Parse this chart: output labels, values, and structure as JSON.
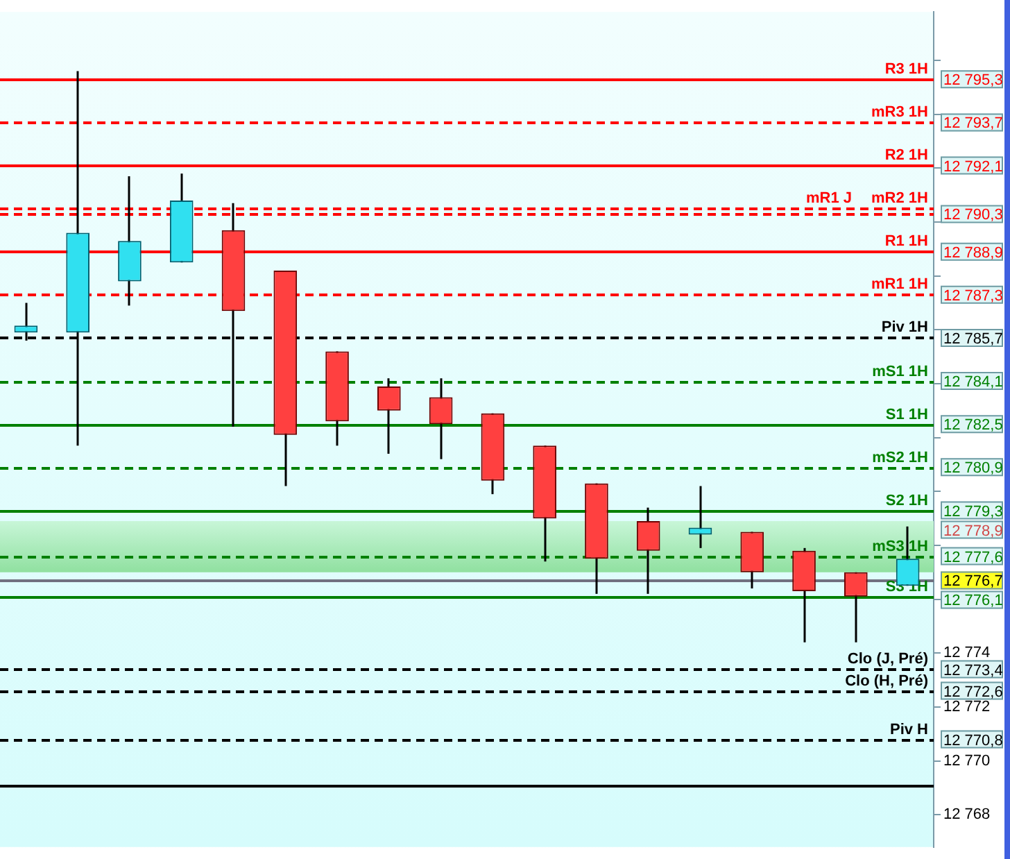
{
  "chart_data": {
    "type": "candlestick",
    "categories": [
      null,
      null,
      null,
      null,
      null,
      null,
      null,
      null,
      null,
      null,
      null,
      null,
      null,
      null,
      null,
      null,
      null,
      null
    ],
    "ohlc": [
      [
        12785.9,
        12787.0,
        12785.6,
        12786.0
      ],
      [
        12785.9,
        12795.6,
        12781.7,
        12789.6
      ],
      [
        12787.8,
        12791.7,
        12786.9,
        12789.3
      ],
      [
        12788.5,
        12791.8,
        12788.5,
        12790.8
      ],
      [
        12789.7,
        12790.7,
        12782.4,
        12786.7
      ],
      [
        12788.2,
        12788.2,
        12780.2,
        12782.1
      ],
      [
        12785.2,
        12785.2,
        12781.7,
        12782.6
      ],
      [
        12783.9,
        12784.2,
        12781.4,
        12783.0
      ],
      [
        12783.5,
        12784.2,
        12781.2,
        12782.5
      ],
      [
        12782.9,
        12782.9,
        12779.9,
        12780.4
      ],
      [
        12781.7,
        12781.7,
        12777.4,
        12779.0
      ],
      [
        12780.3,
        12780.3,
        12776.2,
        12777.5
      ],
      [
        12778.9,
        12779.4,
        12776.2,
        12777.8
      ],
      [
        12778.4,
        12780.2,
        12777.9,
        12778.6
      ],
      [
        12778.5,
        12778.5,
        12776.4,
        12777.0
      ],
      [
        12777.8,
        12777.9,
        12774.4,
        12776.3
      ],
      [
        12777.0,
        12777.0,
        12774.4,
        12776.1
      ],
      [
        12776.5,
        12778.7,
        12776.5,
        12777.5
      ]
    ],
    "annotations": [
      "12 795,3",
      "12 793,7",
      "12 792,1",
      "12 790,3",
      "12 788,9",
      "12 787,3",
      "12 785,7",
      "12 784,1",
      "12 782,5",
      "12 780,9",
      "12 779,3",
      "12 778,9",
      "12 777,6",
      "12 776,7",
      "12 776,1",
      "12 773,4",
      "12 772,6",
      "12 770,8"
    ],
    "ylim": [
      12766.8,
      12797.8
    ],
    "yticks": [
      {
        "value": 12768,
        "label": "12 768"
      },
      {
        "value": 12770,
        "label": "12 770"
      },
      {
        "value": 12772,
        "label": "12 772"
      },
      {
        "value": 12774,
        "label": "12 774"
      },
      {
        "value": 12776,
        "label": null
      },
      {
        "value": 12778,
        "label": null
      },
      {
        "value": 12780,
        "label": null
      },
      {
        "value": 12782,
        "label": null
      },
      {
        "value": 12784,
        "label": null
      },
      {
        "value": 12786,
        "label": null
      },
      {
        "value": 12788,
        "label": null
      },
      {
        "value": 12790,
        "label": null
      },
      {
        "value": 12792,
        "label": null
      },
      {
        "value": 12794,
        "label": null
      },
      {
        "value": 12796,
        "label": null
      }
    ],
    "tick_labels": "y",
    "ref_lines": [
      {
        "axis": "y",
        "value": 12795.3,
        "label": "R3 1H",
        "color": "#ff0000",
        "line_style": "solid"
      },
      {
        "axis": "y",
        "value": 12793.7,
        "label": "mR3 1H",
        "color": "#ff0000",
        "line_style": "dashed"
      },
      {
        "axis": "y",
        "value": 12792.1,
        "label": "R2 1H",
        "color": "#ff0000",
        "line_style": "solid"
      },
      {
        "axis": "y",
        "value": 12790.5,
        "label": "mR2 1H",
        "color": "#ff0000",
        "line_style": "dashed"
      },
      {
        "axis": "y",
        "value": 12790.3,
        "label": "mR1 J",
        "color": "#ff0000",
        "line_style": "dashed"
      },
      {
        "axis": "y",
        "value": 12788.9,
        "label": "R1 1H",
        "color": "#ff0000",
        "line_style": "solid"
      },
      {
        "axis": "y",
        "value": 12787.3,
        "label": "mR1 1H",
        "color": "#ff0000",
        "line_style": "dashed"
      },
      {
        "axis": "y",
        "value": 12785.7,
        "label": "Piv 1H",
        "color": "#000000",
        "line_style": "dashed"
      },
      {
        "axis": "y",
        "value": 12784.1,
        "label": "mS1 1H",
        "color": "#008000",
        "line_style": "dashed"
      },
      {
        "axis": "y",
        "value": 12782.5,
        "label": "S1 1H",
        "color": "#008000",
        "line_style": "solid"
      },
      {
        "axis": "y",
        "value": 12780.9,
        "label": "mS2 1H",
        "color": "#008000",
        "line_style": "dashed"
      },
      {
        "axis": "y",
        "value": 12779.3,
        "label": "S2 1H",
        "color": "#008000",
        "line_style": "solid"
      },
      {
        "axis": "y",
        "value": 12777.6,
        "label": "mS3 1H",
        "color": "#008000",
        "line_style": "dashed"
      },
      {
        "axis": "y",
        "value": 12776.7,
        "label": null,
        "color": "#707080",
        "line_style": "solid"
      },
      {
        "axis": "y",
        "value": 12776.1,
        "label": "S3 1H",
        "color": "#008000",
        "line_style": "solid"
      },
      {
        "axis": "y",
        "value": 12773.4,
        "label": "Clo (J, Pré)",
        "color": "#000000",
        "line_style": "dashed"
      },
      {
        "axis": "y",
        "value": 12772.6,
        "label": "Clo (H, Pré)",
        "color": "#000000",
        "line_style": "dashed"
      },
      {
        "axis": "y",
        "value": 12770.8,
        "label": "Piv H",
        "color": "#000000",
        "line_style": "dashed"
      },
      {
        "axis": "y",
        "value": 12769.1,
        "label": null,
        "color": "#000000",
        "line_style": "solid"
      }
    ],
    "bands": [
      {
        "axis": "y",
        "from": 12777.0,
        "to": 12778.9,
        "label": null,
        "color": "#90e0a0"
      }
    ]
  }
}
